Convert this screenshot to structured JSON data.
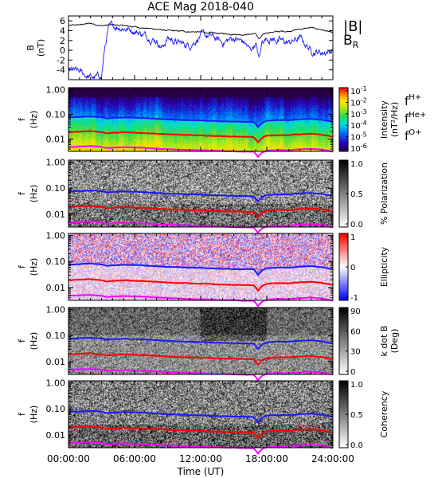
{
  "chart_data": {
    "title": "ACE Mag 2018-040",
    "xlabel": "Time (UT)",
    "x_ticks": [
      "00:00:00",
      "06:00:00",
      "12:00:00",
      "18:00:00",
      "24:00:00"
    ],
    "x_range_hours": [
      0,
      24
    ],
    "panels": [
      {
        "type": "line",
        "ylabel": "B",
        "yunit": "(nT)",
        "ylim": [
          -6,
          7
        ],
        "y_ticks": [
          "6",
          "4",
          "2",
          "0",
          "-2",
          "-4"
        ],
        "y_tick_values": [
          6,
          4,
          2,
          0,
          -2,
          -4
        ],
        "legend": [
          {
            "label": "|B|",
            "color": "#000000"
          },
          {
            "label": "B",
            "sub": "R",
            "color": "#1a1aff"
          }
        ],
        "series": [
          {
            "name": "|B|",
            "color": "#000000",
            "x": [
              0,
              1,
              2,
              3,
              4,
              5,
              6,
              7,
              8,
              9,
              10,
              11,
              12,
              13,
              14,
              15,
              16,
              17,
              17.3,
              17.6,
              18,
              19,
              20,
              21,
              22,
              23,
              24
            ],
            "values": [
              5.0,
              5.2,
              5.5,
              5.0,
              5.2,
              5.0,
              4.8,
              4.5,
              4.3,
              4.0,
              3.9,
              3.8,
              3.7,
              3.5,
              3.4,
              3.3,
              3.2,
              3.4,
              2.2,
              3.0,
              3.6,
              3.8,
              3.9,
              4.3,
              4.6,
              4.2,
              3.5
            ]
          },
          {
            "name": "B_R",
            "color": "#1a1aff",
            "x": [
              0,
              0.5,
              1,
              1.5,
              2,
              2.5,
              3,
              3.3,
              3.6,
              4,
              5,
              6,
              7,
              8,
              8.5,
              9,
              10,
              11,
              12,
              13,
              14,
              15,
              16,
              16.5,
              17,
              17.3,
              17.6,
              18,
              19,
              20,
              21,
              22,
              23,
              24
            ],
            "values": [
              -4.0,
              -4.2,
              -4.5,
              -5.0,
              -5.5,
              -5.6,
              -5.2,
              0.5,
              4.2,
              5.0,
              4.6,
              4.0,
              3.0,
              2.0,
              0.5,
              2.5,
              1.5,
              1.0,
              3.0,
              2.8,
              1.5,
              2.5,
              1.5,
              0.0,
              1.5,
              -2.0,
              2.0,
              2.5,
              2.0,
              1.5,
              2.5,
              0.0,
              -0.5,
              0.0
            ]
          }
        ]
      },
      {
        "type": "heatmap",
        "ylabel": "f",
        "yunit": "(Hz)",
        "colormap": "rainbow",
        "colorbar": {
          "label": "Intensity",
          "unit": "(nT²/Hz)",
          "ticks": [
            [
              "10",
              "-1"
            ],
            [
              "10",
              "-2"
            ],
            [
              "10",
              "-3"
            ],
            [
              "10",
              "-4"
            ],
            [
              "10",
              "-5"
            ],
            [
              "10",
              "-6"
            ]
          ]
        },
        "legend": [
          {
            "label": "f",
            "sub": "H+",
            "color": "#3030e0"
          },
          {
            "label": "f",
            "sub": "He+",
            "color": "#e01010"
          },
          {
            "label": "f",
            "sub": "O+",
            "color": "#e020e0"
          }
        ]
      },
      {
        "type": "heatmap",
        "ylabel": "f",
        "yunit": "(Hz)",
        "colormap": "gray",
        "colorbar": {
          "label": "% Polarization",
          "unit": "",
          "ticks": [
            [
              "1.0",
              ""
            ],
            [
              "0.5",
              ""
            ],
            [
              "0.0",
              ""
            ]
          ]
        }
      },
      {
        "type": "heatmap",
        "ylabel": "f",
        "yunit": "(Hz)",
        "colormap": "bwr",
        "colorbar": {
          "label": "Ellipticity",
          "unit": "",
          "ticks": [
            [
              "1",
              ""
            ],
            [
              "0",
              ""
            ],
            [
              "-1",
              ""
            ]
          ]
        }
      },
      {
        "type": "heatmap",
        "ylabel": "f",
        "yunit": "(Hz)",
        "colormap": "gray",
        "colorbar": {
          "label": "k dot B",
          "unit": "(Deg)",
          "ticks": [
            [
              "90",
              ""
            ],
            [
              "60",
              ""
            ],
            [
              "30",
              ""
            ],
            [
              "0",
              ""
            ]
          ]
        }
      },
      {
        "type": "heatmap",
        "ylabel": "f",
        "yunit": "(Hz)",
        "colormap": "gray",
        "colorbar": {
          "label": "Coherency",
          "unit": "",
          "ticks": [
            [
              "1.0",
              ""
            ],
            [
              "0.5",
              ""
            ],
            [
              "0.0",
              ""
            ]
          ]
        }
      }
    ],
    "freq_ticks": [
      "1.00",
      "0.10",
      "0.01"
    ],
    "freq_tick_values": [
      1.0,
      0.1,
      0.01
    ],
    "freq_range": [
      0.0032,
      1.2
    ],
    "gyro_lines": {
      "x": [
        0,
        1,
        2,
        3,
        3.5,
        4,
        5,
        6,
        7,
        8,
        9,
        10,
        11,
        12,
        13,
        14,
        15,
        16,
        16.8,
        17.2,
        17.6,
        18,
        19,
        20,
        21,
        22,
        23,
        24
      ],
      "H+": [
        0.076,
        0.079,
        0.083,
        0.077,
        0.068,
        0.072,
        0.075,
        0.073,
        0.07,
        0.066,
        0.062,
        0.06,
        0.058,
        0.057,
        0.054,
        0.052,
        0.051,
        0.05,
        0.049,
        0.03,
        0.046,
        0.055,
        0.058,
        0.058,
        0.063,
        0.066,
        0.06,
        0.05
      ],
      "He+": [
        0.019,
        0.02,
        0.021,
        0.019,
        0.017,
        0.018,
        0.019,
        0.018,
        0.0175,
        0.0165,
        0.0155,
        0.015,
        0.0145,
        0.0142,
        0.0135,
        0.013,
        0.0128,
        0.0125,
        0.0122,
        0.0075,
        0.0115,
        0.0138,
        0.0145,
        0.0145,
        0.0158,
        0.0165,
        0.015,
        0.0125
      ],
      "O+": [
        0.0048,
        0.005,
        0.0052,
        0.0048,
        0.0043,
        0.0045,
        0.0047,
        0.0046,
        0.0044,
        0.0041,
        0.0039,
        0.0038,
        0.0036,
        0.0036,
        0.0034,
        0.0033,
        0.0032,
        0.0031,
        0.0031,
        0.0019,
        0.0029,
        0.0034,
        0.0036,
        0.0036,
        0.0039,
        0.0041,
        0.0038,
        0.0031
      ]
    }
  }
}
